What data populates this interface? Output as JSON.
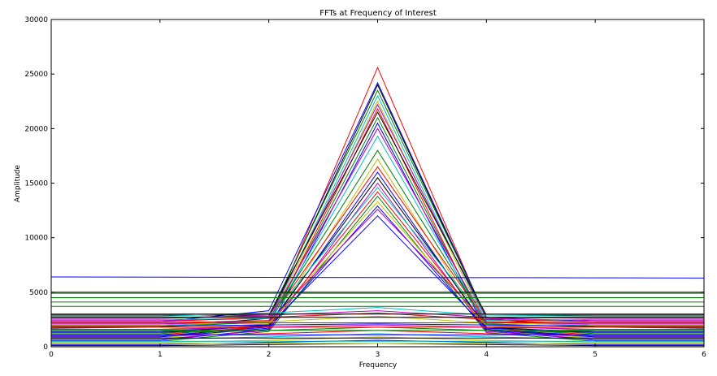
{
  "chart_data": {
    "type": "line",
    "title": "FFTs at Frequency of Interest",
    "xlabel": "Frequency",
    "ylabel": "Amplitude",
    "xlim": [
      0,
      6
    ],
    "ylim": [
      0,
      30000
    ],
    "x": [
      0,
      1,
      2,
      3,
      4,
      5,
      6
    ],
    "xticks": [
      "0",
      "1",
      "2",
      "3",
      "4",
      "5",
      "6"
    ],
    "yticks": [
      "0",
      "5000",
      "10000",
      "15000",
      "20000",
      "25000",
      "30000"
    ],
    "grid": false,
    "legend": "none",
    "series": [
      {
        "color": "#ff0000",
        "values": [
          2000,
          2000,
          2200,
          25600,
          2500,
          2000,
          2000
        ]
      },
      {
        "color": "#0000ff",
        "values": [
          2300,
          2300,
          3300,
          24200,
          2700,
          2300,
          2300
        ]
      },
      {
        "color": "#000000",
        "values": [
          1700,
          1800,
          2600,
          24000,
          2600,
          1800,
          1700
        ]
      },
      {
        "color": "#007f00",
        "values": [
          2700,
          2700,
          2800,
          23500,
          2700,
          2700,
          2700
        ]
      },
      {
        "color": "#00bfbf",
        "values": [
          1900,
          1900,
          2300,
          23000,
          2300,
          1900,
          1900
        ]
      },
      {
        "color": "#bfbf00",
        "values": [
          1400,
          1400,
          2100,
          22500,
          2100,
          1400,
          1400
        ]
      },
      {
        "color": "#bf00bf",
        "values": [
          2400,
          2400,
          2600,
          22200,
          2600,
          2400,
          2400
        ]
      },
      {
        "color": "#ff0000",
        "values": [
          900,
          900,
          1900,
          21800,
          1600,
          900,
          900
        ]
      },
      {
        "color": "#000000",
        "values": [
          2900,
          2900,
          2900,
          21500,
          2900,
          2900,
          2900
        ]
      },
      {
        "color": "#007f00",
        "values": [
          1200,
          1200,
          2000,
          21000,
          1800,
          1200,
          1200
        ]
      },
      {
        "color": "#0000ff",
        "values": [
          600,
          600,
          1600,
          20500,
          1500,
          600,
          600
        ]
      },
      {
        "color": "#bf00bf",
        "values": [
          2000,
          2000,
          2400,
          20000,
          2200,
          2000,
          2000
        ]
      },
      {
        "color": "#00bfbf",
        "values": [
          1500,
          1500,
          2100,
          19300,
          2000,
          1500,
          1500
        ]
      },
      {
        "color": "#007f00",
        "values": [
          1800,
          1800,
          2300,
          18000,
          2100,
          1800,
          1800
        ]
      },
      {
        "color": "#bfbf00",
        "values": [
          800,
          800,
          1700,
          17200,
          1500,
          800,
          800
        ]
      },
      {
        "color": "#ff0000",
        "values": [
          2200,
          2200,
          2400,
          16500,
          2300,
          2200,
          2200
        ]
      },
      {
        "color": "#0000ff",
        "values": [
          1000,
          1000,
          1800,
          16000,
          1600,
          1000,
          1000
        ]
      },
      {
        "color": "#000000",
        "values": [
          1300,
          1300,
          2000,
          15500,
          1800,
          1300,
          1300
        ]
      },
      {
        "color": "#bf00bf",
        "values": [
          700,
          700,
          1500,
          15000,
          1400,
          700,
          700
        ]
      },
      {
        "color": "#00bfbf",
        "values": [
          2500,
          2500,
          2600,
          14600,
          2400,
          2500,
          2500
        ]
      },
      {
        "color": "#ff0000",
        "values": [
          1100,
          1100,
          1900,
          14200,
          1700,
          1100,
          1100
        ]
      },
      {
        "color": "#007f00",
        "values": [
          500,
          500,
          1400,
          13800,
          1300,
          500,
          500
        ]
      },
      {
        "color": "#bfbf00",
        "values": [
          1600,
          1600,
          2100,
          13300,
          1900,
          1600,
          1600
        ]
      },
      {
        "color": "#0000ff",
        "values": [
          900,
          900,
          1700,
          12900,
          1500,
          900,
          900
        ]
      },
      {
        "color": "#bf00bf",
        "values": [
          2100,
          2100,
          2300,
          12600,
          2200,
          2100,
          2100
        ]
      },
      {
        "color": "#0000ff",
        "values": [
          1400,
          1400,
          1900,
          12000,
          1700,
          1400,
          1400
        ]
      },
      {
        "color": "#0000ff",
        "values": [
          6400,
          6380,
          6360,
          6350,
          6340,
          6320,
          6300
        ]
      },
      {
        "color": "#000000",
        "values": [
          5000,
          5000,
          5000,
          5000,
          5000,
          5000,
          5000
        ]
      },
      {
        "color": "#007f00",
        "values": [
          4900,
          4900,
          4900,
          4900,
          4900,
          4900,
          4900
        ]
      },
      {
        "color": "#007f00",
        "values": [
          4500,
          4500,
          4500,
          4500,
          4500,
          4500,
          4500
        ]
      },
      {
        "color": "#007f00",
        "values": [
          3700,
          3700,
          3700,
          3700,
          3700,
          3700,
          3700
        ]
      },
      {
        "color": "#007f00",
        "values": [
          4100,
          4100,
          4100,
          4100,
          4100,
          4100,
          4100
        ]
      },
      {
        "color": "#00bfbf",
        "values": [
          2800,
          2800,
          3100,
          3600,
          2900,
          2800,
          2800
        ]
      },
      {
        "color": "#bf00bf",
        "values": [
          2600,
          2600,
          2900,
          3300,
          2700,
          2600,
          2600
        ]
      },
      {
        "color": "#ff0000",
        "values": [
          2300,
          2300,
          2700,
          3100,
          2500,
          2300,
          2300
        ]
      },
      {
        "color": "#bfbf00",
        "values": [
          2000,
          2000,
          2300,
          2800,
          2200,
          2000,
          2000
        ]
      },
      {
        "color": "#000000",
        "values": [
          3000,
          3000,
          3000,
          3000,
          3000,
          3000,
          3000
        ]
      },
      {
        "color": "#000000",
        "values": [
          2700,
          2700,
          2700,
          2700,
          2700,
          2700,
          2700
        ]
      },
      {
        "color": "#0000ff",
        "values": [
          1900,
          1900,
          2000,
          2100,
          2000,
          1900,
          1900
        ]
      },
      {
        "color": "#bf00bf",
        "values": [
          1600,
          1600,
          1800,
          2000,
          1800,
          1600,
          1600
        ]
      },
      {
        "color": "#007f00",
        "values": [
          1300,
          1300,
          1500,
          1800,
          1500,
          1300,
          1300
        ]
      },
      {
        "color": "#ff0000",
        "values": [
          1000,
          1000,
          1200,
          1500,
          1200,
          1000,
          1000
        ]
      },
      {
        "color": "#00bfbf",
        "values": [
          700,
          700,
          900,
          1200,
          900,
          700,
          700
        ]
      },
      {
        "color": "#bfbf00",
        "values": [
          400,
          400,
          600,
          900,
          600,
          400,
          400
        ]
      },
      {
        "color": "#0000ff",
        "values": [
          200,
          200,
          400,
          600,
          400,
          200,
          200
        ]
      },
      {
        "color": "#000000",
        "values": [
          100,
          100,
          200,
          300,
          200,
          100,
          100
        ]
      },
      {
        "color": "#bf00bf",
        "values": [
          2200,
          2200,
          2200,
          2200,
          2200,
          2200,
          2200
        ]
      },
      {
        "color": "#ff0000",
        "values": [
          1800,
          1800,
          1800,
          1800,
          1800,
          1800,
          1800
        ]
      },
      {
        "color": "#007f00",
        "values": [
          1500,
          1500,
          1500,
          1500,
          1500,
          1500,
          1500
        ]
      },
      {
        "color": "#0000ff",
        "values": [
          1100,
          1100,
          1100,
          1100,
          1100,
          1100,
          1100
        ]
      },
      {
        "color": "#000000",
        "values": [
          800,
          800,
          800,
          800,
          800,
          800,
          800
        ]
      },
      {
        "color": "#00bfbf",
        "values": [
          500,
          500,
          500,
          500,
          500,
          500,
          500
        ]
      },
      {
        "color": "#bfbf00",
        "values": [
          300,
          300,
          300,
          300,
          300,
          300,
          300
        ]
      }
    ]
  }
}
